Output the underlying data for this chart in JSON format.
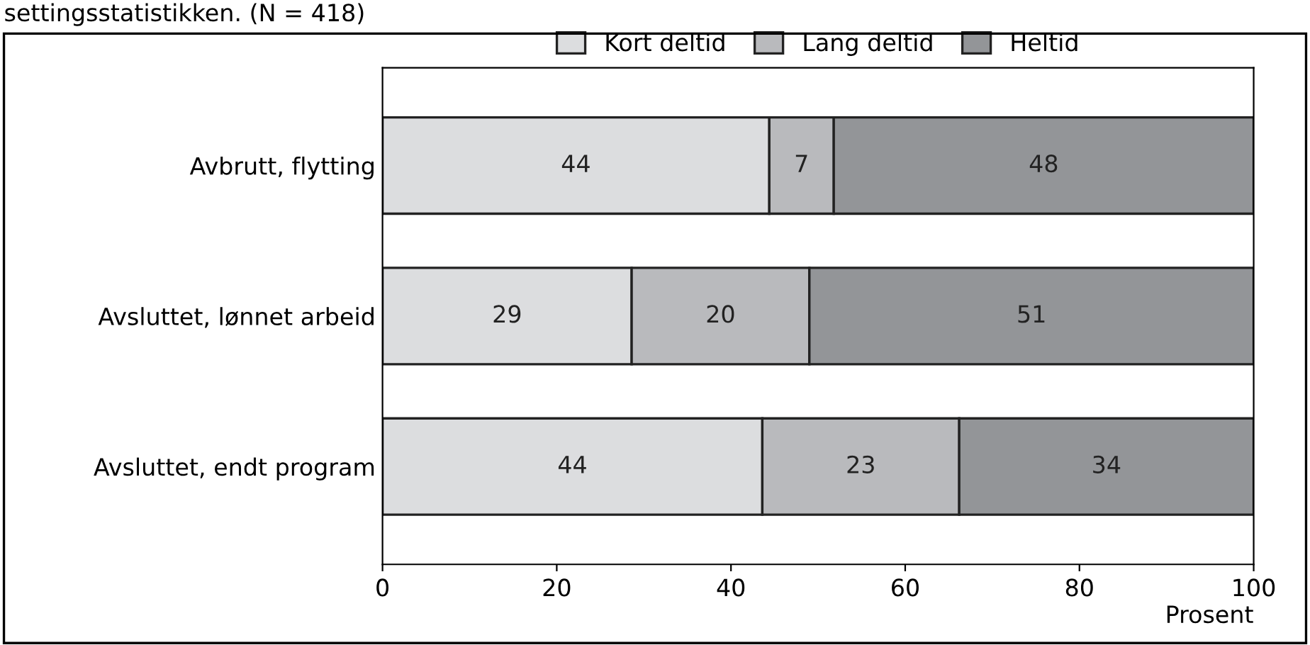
{
  "chart_data": {
    "type": "bar",
    "orientation": "horizontal",
    "stacked": true,
    "title": "settingsstatistikken. (N = 418)",
    "categories": [
      "Avbrutt, flytting",
      "Avsluttet, lønnet arbeid",
      "Avsluttet, endt program"
    ],
    "series": [
      {
        "name": "Kort deltid",
        "color": "#dcdddf",
        "values": [
          44.4,
          28.6,
          43.6
        ],
        "value_labels": [
          "44",
          "29",
          "44"
        ]
      },
      {
        "name": "Lang deltid",
        "color": "#b9babd",
        "values": [
          7.4,
          20.4,
          22.6
        ],
        "value_labels": [
          "7",
          "20",
          "23"
        ]
      },
      {
        "name": "Heltid",
        "color": "#939598",
        "values": [
          48.2,
          51.0,
          33.8
        ],
        "value_labels": [
          "48",
          "51",
          "34"
        ]
      }
    ],
    "xlabel": "Prosent",
    "xlim": [
      0,
      100
    ],
    "xticks": [
      0,
      20,
      40,
      60,
      80,
      100
    ],
    "grid": false,
    "legend": "top",
    "data_labels": true
  }
}
